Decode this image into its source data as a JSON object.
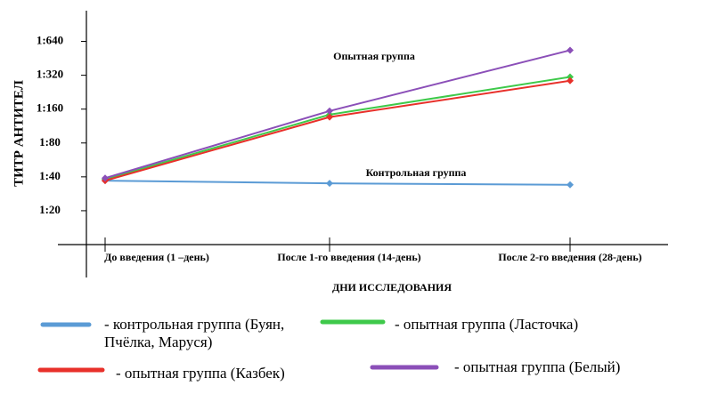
{
  "chart_data": {
    "type": "line",
    "y_label": "ТИТР АНТИТЕЛ",
    "x_label": "ДНИ ИССЛЕДОВАНИЯ",
    "annotations": [
      "Опытная группа",
      "Контрольная группа"
    ],
    "categories": [
      "До введения (1 –день)",
      "После 1-го введения (14-день)",
      "После 2-го введения (28-день)"
    ],
    "log_scale": true,
    "ylim": [
      10,
      1200
    ],
    "yticks": [
      {
        "value": 20,
        "label": "1:20"
      },
      {
        "value": 40,
        "label": "1:40"
      },
      {
        "value": 80,
        "label": "1:80"
      },
      {
        "value": 160,
        "label": "1:160"
      },
      {
        "value": 320,
        "label": "1:320"
      },
      {
        "value": 640,
        "label": "1:640"
      }
    ],
    "series": [
      {
        "name": "- контрольная группа (Буян, Пчёлка, Маруся)",
        "color": "#5b9bd5",
        "values": [
          37,
          35,
          34
        ]
      },
      {
        "name": "- опытная группа (Ласточка)",
        "color": "#3ec94a",
        "values": [
          38,
          143,
          309
        ]
      },
      {
        "name": "- опытная группа (Казбек)",
        "color": "#e8302a",
        "values": [
          37,
          136,
          286
        ]
      },
      {
        "name": "- опытная группа (Белый)",
        "color": "#8b4fb8",
        "values": [
          39,
          154,
          534
        ]
      }
    ]
  }
}
